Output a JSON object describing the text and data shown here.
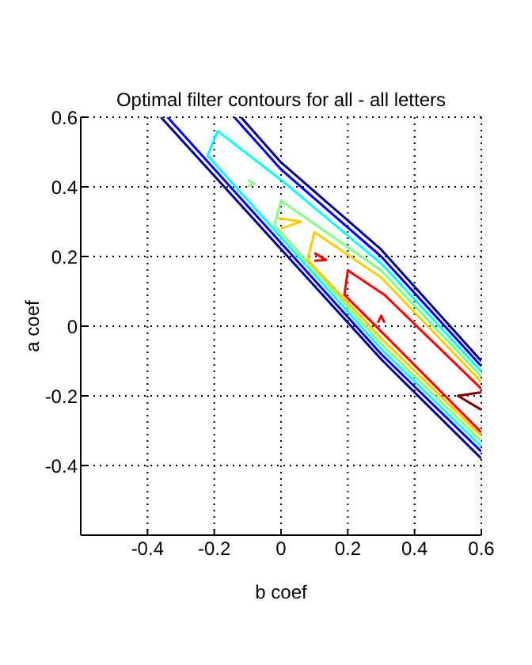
{
  "chart_data": {
    "type": "line",
    "title": "Optimal filter contours for all - all letters",
    "xlabel": "b coef",
    "ylabel": "a coef",
    "xlim": [
      -0.6,
      0.6
    ],
    "ylim": [
      -0.6,
      0.6
    ],
    "xticks": [
      -0.4,
      -0.2,
      0,
      0.2,
      0.4,
      0.6
    ],
    "yticks": [
      -0.4,
      -0.2,
      0,
      0.2,
      0.4,
      0.6
    ],
    "grid": true,
    "marker": "none",
    "line_style": "solid",
    "series": [
      {
        "color": "#00008f",
        "x": [
          -0.36,
          0.3,
          0.6,
          null,
          -0.12,
          0,
          0.3,
          0.6
        ],
        "values": [
          0.6,
          -0.095,
          -0.38,
          null,
          0.6,
          0.47,
          0.22,
          -0.1
        ]
      },
      {
        "color": "#0000ff",
        "x": [
          -0.34,
          0.3,
          0.6,
          null,
          -0.14,
          0,
          0.3,
          0.6
        ],
        "values": [
          0.6,
          -0.08,
          -0.36,
          null,
          0.6,
          0.45,
          0.2,
          -0.115
        ]
      },
      {
        "color": "#00ffff",
        "x": [
          0.6,
          0.3,
          0,
          -0.19,
          -0.22,
          0.3,
          0.6
        ],
        "values": [
          -0.13,
          0.18,
          0.42,
          0.56,
          0.49,
          -0.065,
          -0.345
        ]
      },
      {
        "color": "#80ff80",
        "x": [
          -0.1,
          -0.08,
          -0.1,
          null,
          0.6,
          0.3,
          0,
          -0.02,
          0.3,
          0.6
        ],
        "values": [
          0.42,
          0.41,
          0.4,
          null,
          -0.145,
          0.16,
          0.36,
          0.29,
          -0.05,
          -0.33
        ]
      },
      {
        "color": "#ffcc00",
        "x": [
          -0.01,
          0.06,
          0,
          null,
          0.6,
          0.3,
          0.1,
          0.08,
          0.3,
          0.6
        ],
        "values": [
          0.31,
          0.3,
          0.28,
          null,
          -0.16,
          0.14,
          0.27,
          0.19,
          -0.035,
          -0.315
        ]
      },
      {
        "color": "#ff0000",
        "x": [
          0.1,
          0.135,
          0.1,
          null,
          0.6,
          0.31,
          0.2,
          0.19,
          0.3,
          0.6,
          null,
          0.29,
          0.3,
          0.31
        ],
        "values": [
          0.21,
          0.19,
          0.188,
          null,
          -0.18,
          0.09,
          0.16,
          0.09,
          -0.015,
          -0.305,
          null,
          0.01,
          0.03,
          0.01
        ]
      },
      {
        "color": "#800000",
        "x": [
          0.6,
          0.53,
          0.6
        ],
        "values": [
          -0.19,
          -0.2,
          -0.24
        ]
      }
    ]
  }
}
